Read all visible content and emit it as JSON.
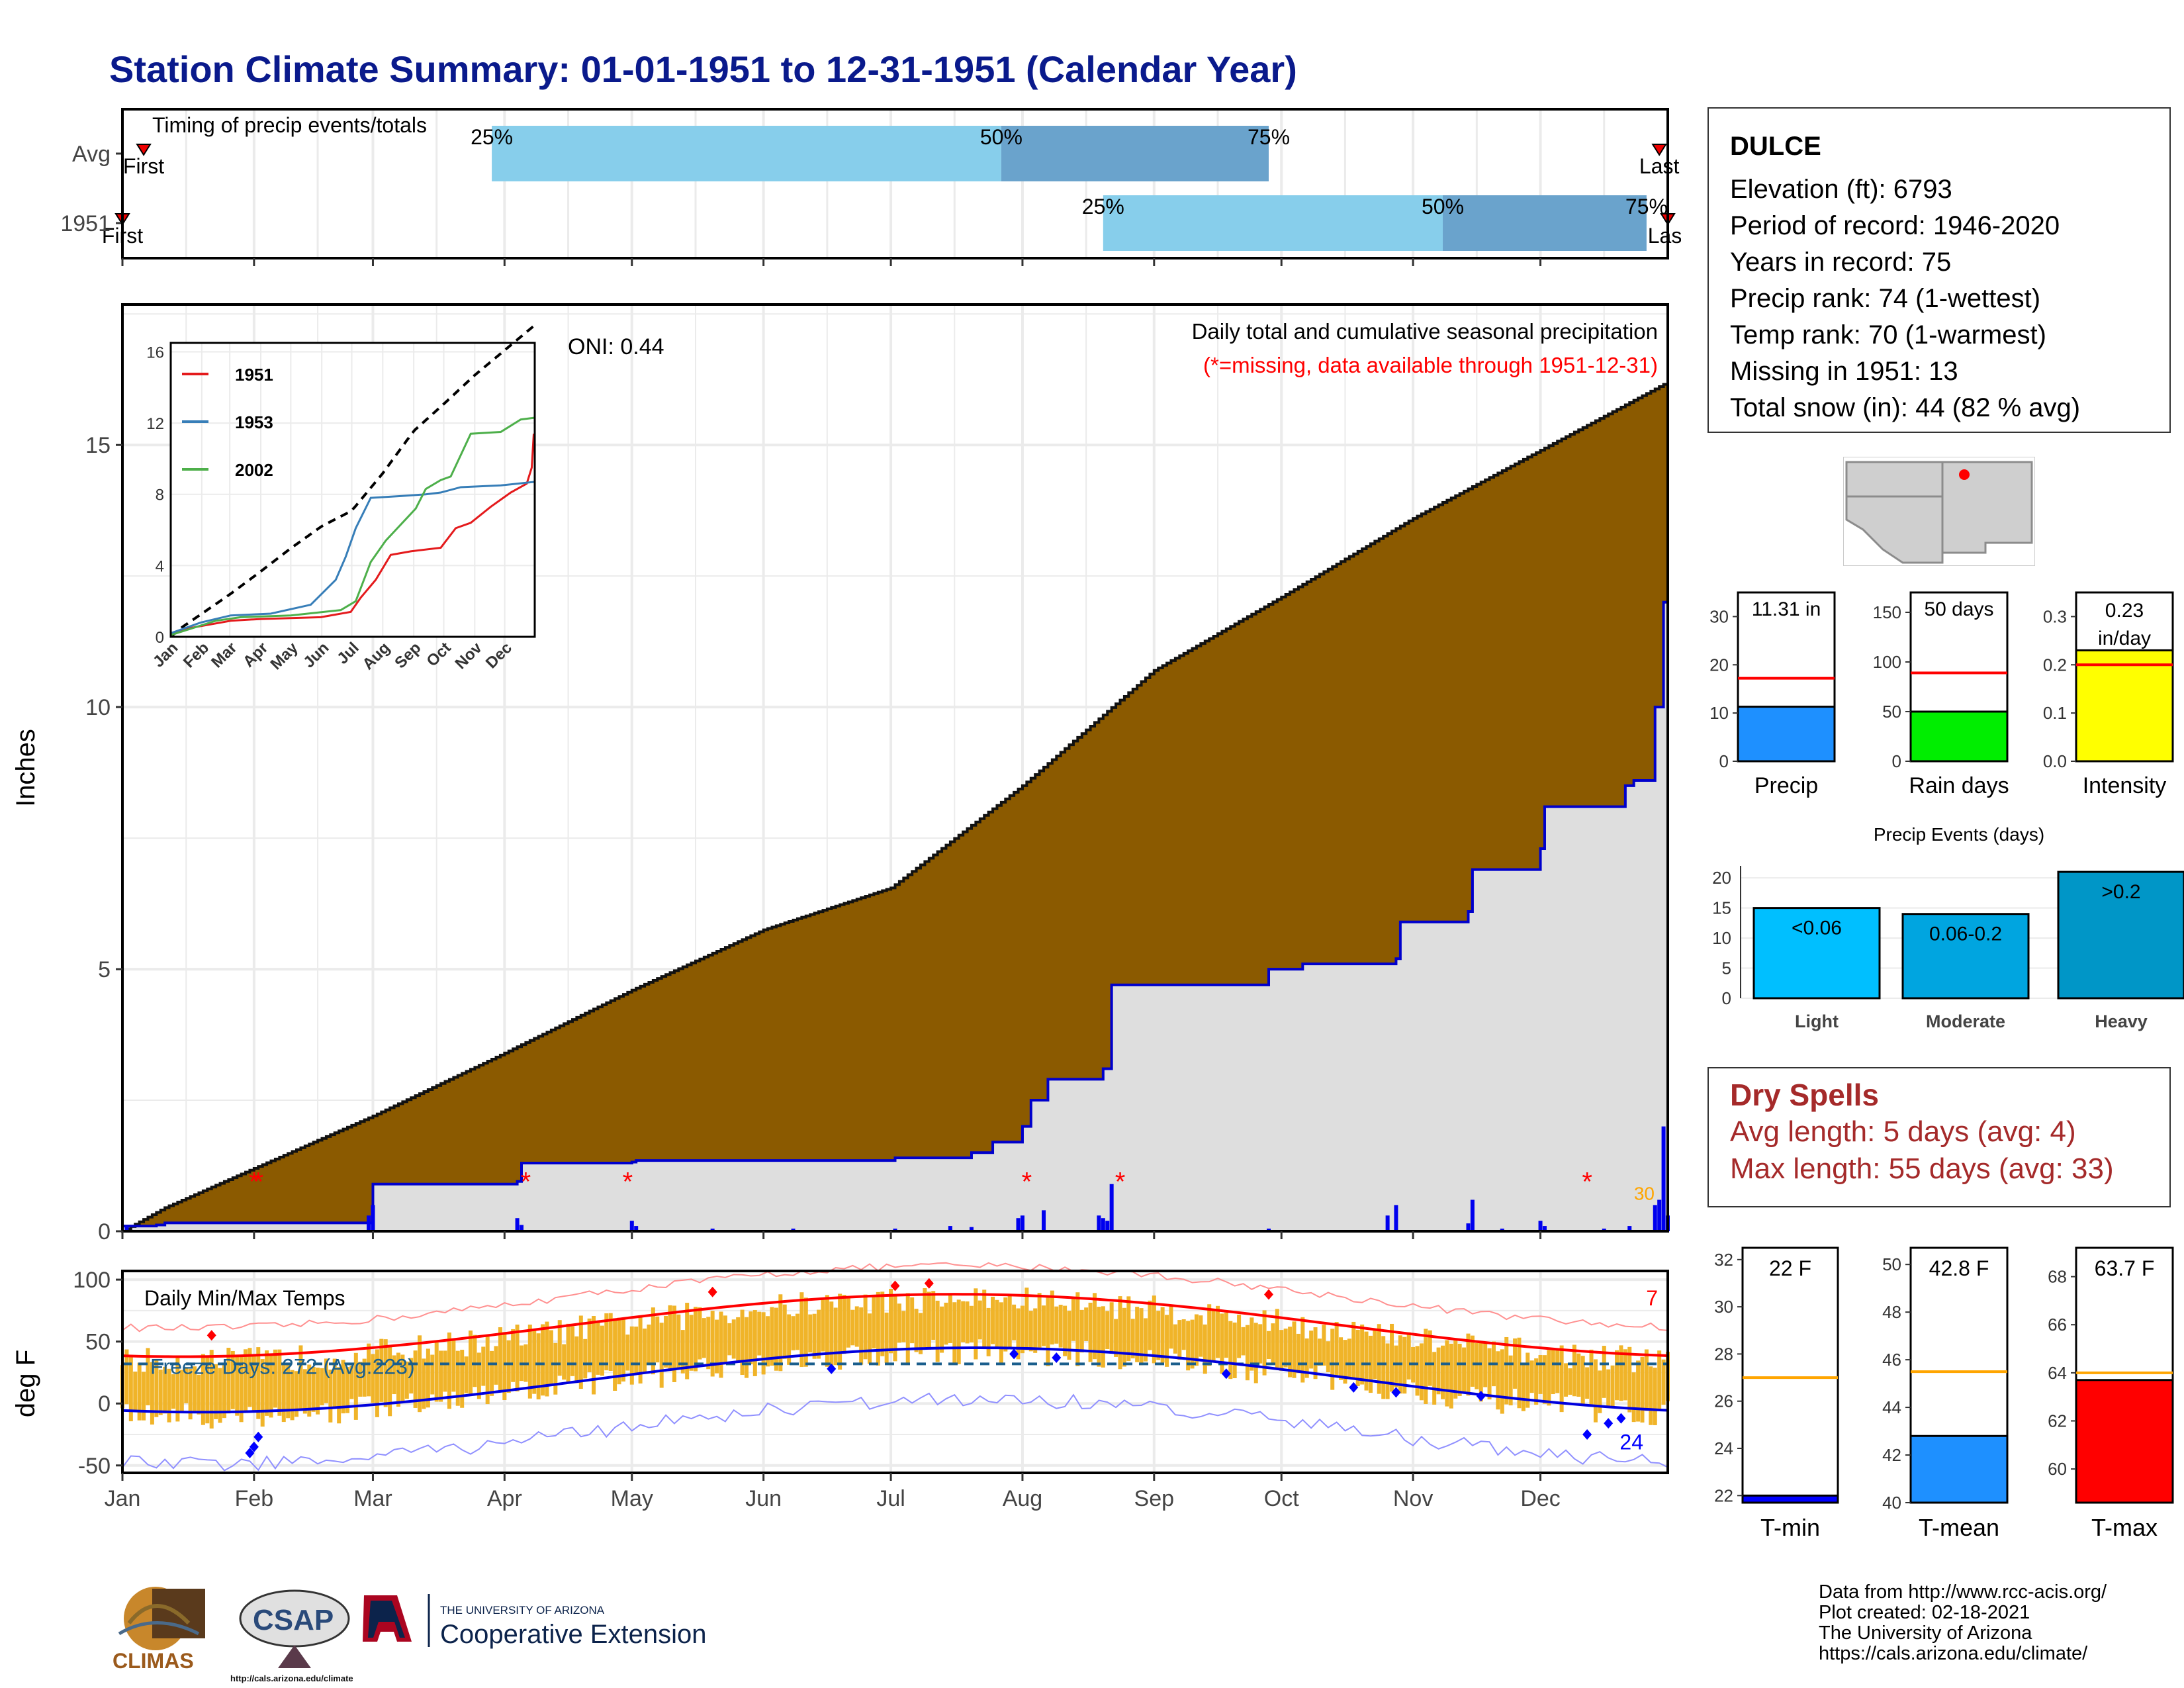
{
  "title": "Station Climate Summary: 01-01-1951 to 12-31-1951 (Calendar Year)",
  "timing": {
    "label": "Timing of precip events/totals",
    "rows": [
      {
        "label": "Avg",
        "p25": "25%",
        "p50": "50%",
        "p75": "75%",
        "first": "First",
        "last": "Last",
        "p25_date": "Mar 29",
        "p50_date": "Jul 27",
        "p75_date": "Sep 28",
        "first_date": "Jan 6",
        "last_date": "Dec 29"
      },
      {
        "label": "1951",
        "p25": "25%",
        "p50": "50%",
        "p75": "75%",
        "first": "First",
        "last": "Last",
        "p25_date": "Aug 20",
        "p50_date": "Nov 8",
        "p75_date": "Dec 26",
        "first_date": "Jan 1",
        "last_date": "Dec 31"
      }
    ]
  },
  "precip_panel": {
    "ylabel": "Inches",
    "header1": "Daily total and cumulative seasonal precipitation",
    "header2": "(*=missing, data available through 1951-12-31)",
    "oni": "ONI: 0.44",
    "corner_value": "30",
    "y_ticks": [
      "0",
      "5",
      "10",
      "15"
    ]
  },
  "inset": {
    "series": [
      {
        "name": "1951",
        "color": "#e41a1c"
      },
      {
        "name": "1953",
        "color": "#377eb8"
      },
      {
        "name": "2002",
        "color": "#4daf4a"
      }
    ],
    "y_ticks": [
      "0",
      "4",
      "8",
      "12",
      "16"
    ],
    "x_ticks": [
      "Jan",
      "Feb",
      "Mar",
      "Apr",
      "May",
      "Jun",
      "Jul",
      "Aug",
      "Sep",
      "Oct",
      "Nov",
      "Dec"
    ]
  },
  "temp_panel": {
    "label": "Daily Min/Max Temps",
    "ylabel": "deg F",
    "freeze": "Freeze Days: 272 (Avg:223)",
    "hot_count": "7",
    "cold_count": "24",
    "y_ticks": [
      "100",
      "50",
      "0",
      "-50"
    ],
    "x_ticks": [
      "Jan",
      "Feb",
      "Mar",
      "Apr",
      "May",
      "Jun",
      "Jul",
      "Aug",
      "Sep",
      "Oct",
      "Nov",
      "Dec"
    ]
  },
  "station": {
    "name": "DULCE",
    "lines": [
      "Elevation (ft): 6793",
      "Period of record: 1946-2020",
      "Years in record: 75",
      "Precip rank: 74 (1-wettest)",
      "Temp rank: 70 (1-warmest)",
      "Missing in 1951: 13",
      "Total snow (in): 44 (82 % avg)"
    ]
  },
  "summary_bars": [
    {
      "label": "Precip",
      "value_text": "11.31 in",
      "value": 11.31,
      "avg": 17.2,
      "ymax": 35,
      "ticks": [
        "0",
        "10",
        "20",
        "30"
      ],
      "color": "#1e90ff",
      "avg_color": "#ff0000"
    },
    {
      "label": "Rain days",
      "value_text": "50 days",
      "value": 50,
      "avg": 89,
      "ymax": 170,
      "ticks": [
        "0",
        "50",
        "100",
        "150"
      ],
      "color": "#00ee00",
      "avg_color": "#ff0000"
    },
    {
      "label": "Intensity",
      "value_text": "0.23 in/day",
      "value": 0.23,
      "avg": 0.2,
      "ymax": 0.35,
      "ticks": [
        "0.0",
        "0.1",
        "0.2",
        "0.3"
      ],
      "color": "#ffff00",
      "avg_color": "#ff0000"
    }
  ],
  "precip_events": {
    "title": "Precip Events (days)",
    "ticks": [
      "0",
      "5",
      "10",
      "15",
      "20"
    ],
    "bars": [
      {
        "label": "Light",
        "range": "<0.06",
        "value": 15,
        "color": "#00bfff"
      },
      {
        "label": "Moderate",
        "range": "0.06-0.2",
        "value": 14,
        "color": "#00a5e0"
      },
      {
        "label": "Heavy",
        "range": ">0.2",
        "value": 21,
        "color": "#0096c7"
      }
    ]
  },
  "dry_spells": {
    "title": "Dry Spells",
    "avg": "Avg length: 5 days (avg: 4)",
    "max": "Max length: 55 days (avg: 33)"
  },
  "temp_bars": [
    {
      "label": "T-min",
      "value_text": "22 F",
      "value": 22,
      "avg": 27,
      "ymin": 21.7,
      "ymax": 32.5,
      "ticks": [
        "22",
        "24",
        "26",
        "28",
        "30",
        "32"
      ],
      "color": "#0000ff",
      "avg_color": "#ffa500"
    },
    {
      "label": "T-mean",
      "value_text": "42.8 F",
      "value": 42.8,
      "avg": 45.5,
      "ymin": 40,
      "ymax": 50.7,
      "ticks": [
        "40",
        "42",
        "44",
        "46",
        "48",
        "50"
      ],
      "color": "#1e90ff",
      "avg_color": "#ffa500"
    },
    {
      "label": "T-max",
      "value_text": "63.7 F",
      "value": 63.7,
      "avg": 64,
      "ymin": 58.6,
      "ymax": 69.2,
      "ticks": [
        "60",
        "62",
        "64",
        "66",
        "68"
      ],
      "color": "#ff0000",
      "avg_color": "#ffa500"
    }
  ],
  "logos": {
    "climas": "CLIMAS",
    "csap": "CSAP",
    "csap_url": "http://cals.arizona.edu/climate",
    "ua_small": "THE UNIVERSITY OF ARIZONA",
    "ua_big": "Cooperative Extension"
  },
  "credits": [
    "Data from http://www.rcc-acis.org/",
    "Plot created: 02-18-2021",
    "The University of Arizona",
    "https://cals.arizona.edu/climate/"
  ]
}
